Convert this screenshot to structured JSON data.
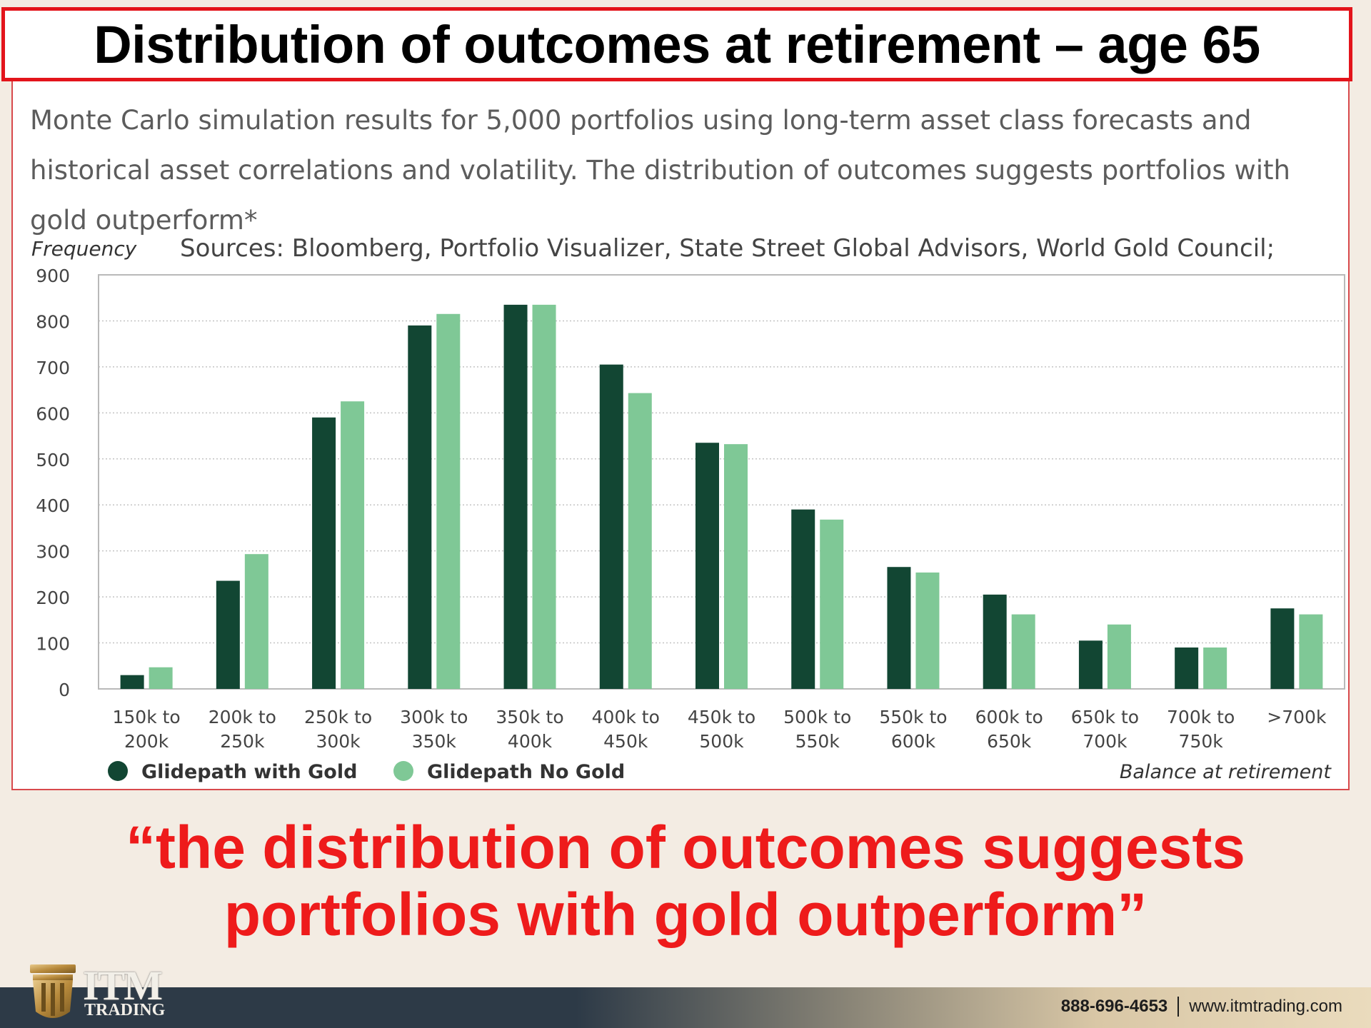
{
  "title": "Distribution of outcomes at retirement – age 65",
  "subtitle": "Monte Carlo simulation results for 5,000 portfolios using long-term asset class forecasts and historical asset correlations and volatility. The distribution of outcomes suggests portfolios with gold outperform*",
  "sources": "Sources: Bloomberg, Portfolio Visualizer, State Street Global Advisors, World Gold Council;",
  "caption": {
    "line1": "“the distribution of outcomes suggests",
    "line2": "portfolios with gold outperform”"
  },
  "footer": {
    "brand": "ITM",
    "brand_sub": "TRADING",
    "phone": "888-696-4653",
    "website": "www.itmtrading.com"
  },
  "colors": {
    "with_gold": "#124633",
    "no_gold": "#7fc896",
    "title_border": "#e3141b",
    "caption": "#ee1b1b"
  },
  "chart_data": {
    "type": "bar",
    "ylabel": "Frequency",
    "xlabel": "Balance at retirement",
    "ylim": [
      0,
      900
    ],
    "yticks": [
      0,
      100,
      200,
      300,
      400,
      500,
      600,
      700,
      800,
      900
    ],
    "grid": true,
    "legend_position": "bottom-left",
    "categories": [
      [
        "150k to",
        "200k"
      ],
      [
        "200k to",
        "250k"
      ],
      [
        "250k to",
        "300k"
      ],
      [
        "300k to",
        "350k"
      ],
      [
        "350k to",
        "400k"
      ],
      [
        "400k to",
        "450k"
      ],
      [
        "450k to",
        "500k"
      ],
      [
        "500k to",
        "550k"
      ],
      [
        "550k to",
        "600k"
      ],
      [
        "600k to",
        "650k"
      ],
      [
        "650k to",
        "700k"
      ],
      [
        "700k to",
        "750k"
      ],
      [
        ">700k"
      ]
    ],
    "series": [
      {
        "name": "Glidepath with Gold",
        "values": [
          30,
          235,
          590,
          790,
          835,
          705,
          535,
          390,
          265,
          205,
          105,
          90,
          175
        ]
      },
      {
        "name": "Glidepath No Gold",
        "values": [
          47,
          293,
          625,
          815,
          835,
          643,
          532,
          368,
          253,
          162,
          140,
          90,
          162
        ]
      }
    ]
  }
}
